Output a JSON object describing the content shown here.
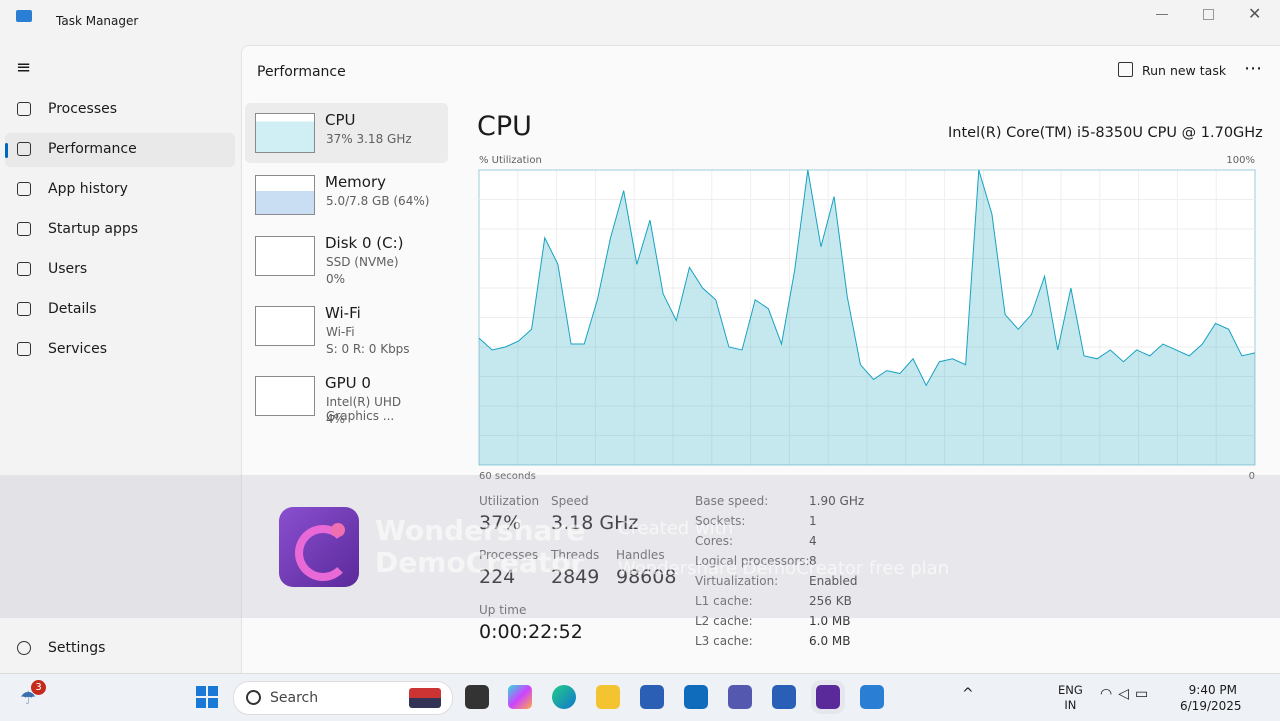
{
  "window": {
    "title": "Task Manager"
  },
  "nav": {
    "items": [
      "Processes",
      "Performance",
      "App history",
      "Startup apps",
      "Users",
      "Details",
      "Services"
    ],
    "settings": "Settings"
  },
  "header": {
    "title": "Performance",
    "run_new_task": "Run new task"
  },
  "devices": [
    {
      "name": "CPU",
      "lines": [
        "37%  3.18 GHz"
      ]
    },
    {
      "name": "Memory",
      "lines": [
        "5.0/7.8 GB (64%)"
      ]
    },
    {
      "name": "Disk 0 (C:)",
      "lines": [
        "SSD (NVMe)",
        "0%"
      ]
    },
    {
      "name": "Wi-Fi",
      "lines": [
        "Wi-Fi",
        "S: 0  R: 0 Kbps"
      ]
    },
    {
      "name": "GPU 0",
      "lines": [
        "Intel(R) UHD Graphics ...",
        "4%"
      ]
    }
  ],
  "cpu": {
    "title": "CPU",
    "model": "Intel(R) Core(TM) i5-8350U CPU @ 1.70GHz",
    "graph": {
      "y_label": "% Utilization",
      "x_label": "60 seconds",
      "ylim": [
        0,
        100
      ],
      "yticks": [
        0,
        {
          "value": 100,
          "label": "100%"
        }
      ],
      "color": "#17a2c0",
      "values": [
        43,
        39,
        40,
        42,
        46,
        77,
        68,
        41,
        41,
        56,
        77,
        93,
        68,
        83,
        58,
        49,
        67,
        60,
        56,
        40,
        39,
        56,
        53,
        41,
        66,
        100,
        74,
        91,
        57,
        34,
        29,
        32,
        31,
        36,
        27,
        35,
        36,
        34,
        100,
        85,
        51,
        46,
        51,
        64,
        39,
        60,
        37,
        36,
        39,
        35,
        39,
        37,
        41,
        39,
        37,
        41,
        48,
        46,
        37,
        38
      ]
    },
    "stats": [
      {
        "label": "Utilization",
        "value": "37%"
      },
      {
        "label": "Speed",
        "value": "3.18 GHz"
      },
      {
        "label": "Processes",
        "value": "224"
      },
      {
        "label": "Threads",
        "value": "2849"
      },
      {
        "label": "Handles",
        "value": "98608"
      }
    ],
    "up_time": {
      "label": "Up time",
      "value": "0:00:22:52"
    },
    "specs": [
      {
        "label": "Base speed:",
        "value": "1.90 GHz"
      },
      {
        "label": "Sockets:",
        "value": "1"
      },
      {
        "label": "Cores:",
        "value": "4"
      },
      {
        "label": "Logical processors:",
        "value": "8"
      },
      {
        "label": "Virtualization:",
        "value": "Enabled"
      },
      {
        "label": "L1 cache:",
        "value": "256 KB"
      },
      {
        "label": "L2 cache:",
        "value": "1.0 MB"
      },
      {
        "label": "L3 cache:",
        "value": "6.0 MB"
      }
    ]
  },
  "watermark": {
    "brand": [
      "Wondershare",
      "DemoCreator"
    ],
    "created_with": "Created with",
    "plan": "Wondershare DemoCreator free plan"
  },
  "taskbar": {
    "badge": "3",
    "search": "Search",
    "language": [
      "ENG",
      "IN"
    ],
    "time": "9:40 PM",
    "date": "6/19/2025"
  }
}
